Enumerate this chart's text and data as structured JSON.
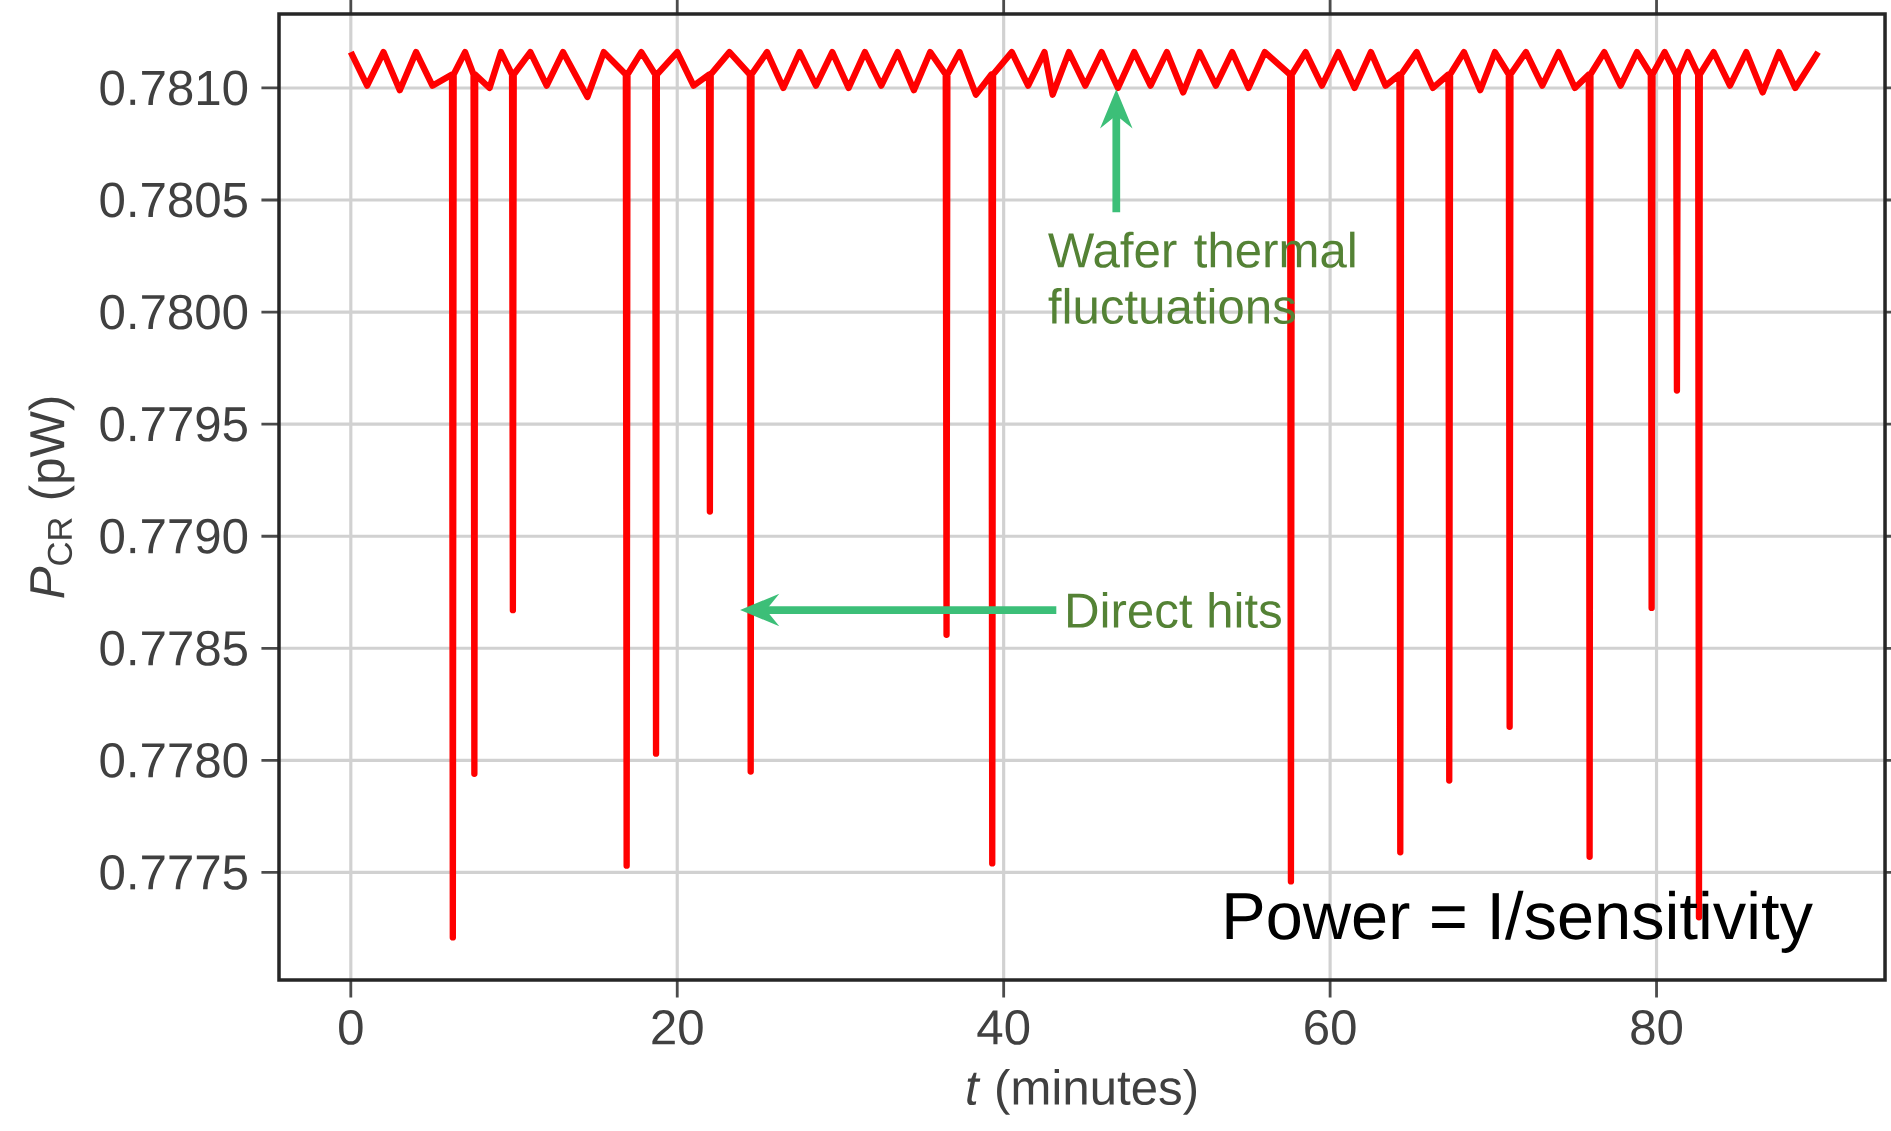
{
  "chart_data": {
    "type": "line",
    "xlabel": "*t* (minutes)",
    "ylabel": "*P*$_{CR}$ (pW)",
    "xlim": [
      -4.4,
      94.0
    ],
    "ylim": [
      0.77702,
      0.78133
    ],
    "xticks": [
      0,
      20,
      40,
      60,
      80
    ],
    "yticks": [
      {
        "value": 0.7775,
        "label": "0.7775"
      },
      {
        "value": 0.778,
        "label": "0.7780"
      },
      {
        "value": 0.7785,
        "label": "0.7785"
      },
      {
        "value": 0.779,
        "label": "0.7790"
      },
      {
        "value": 0.7795,
        "label": "0.7795"
      },
      {
        "value": 0.78,
        "label": "0.7800"
      },
      {
        "value": 0.7805,
        "label": "0.7805"
      },
      {
        "value": 0.781,
        "label": "0.7810"
      }
    ],
    "grid": true,
    "marker": "none",
    "line_style": "solid",
    "series": [
      {
        "color": "#ff0000",
        "x": [
          0,
          1,
          2,
          3,
          4,
          5,
          6.2,
          6.25,
          6.3,
          7.0,
          7.52,
          7.57,
          7.62,
          8.5,
          9.2,
          9.88,
          9.93,
          9.98,
          11,
          12,
          13,
          14.5,
          15.5,
          16.85,
          16.9,
          16.95,
          17.8,
          18.65,
          18.7,
          18.75,
          20,
          21,
          21.95,
          22.0,
          22.05,
          23.2,
          24.45,
          24.5,
          24.55,
          25.5,
          26.5,
          27.5,
          28.5,
          29.5,
          30.5,
          31.5,
          32.5,
          33.5,
          34.5,
          35.5,
          36.45,
          36.5,
          36.55,
          37.3,
          38.3,
          39.25,
          39.3,
          39.35,
          40.5,
          41.5,
          42.5,
          43.0,
          44,
          45,
          46,
          47,
          48,
          49,
          50,
          51,
          52,
          53,
          54,
          55,
          56,
          57.55,
          57.6,
          57.65,
          58.5,
          59.5,
          60.5,
          61.5,
          62.5,
          63.4,
          64.25,
          64.3,
          64.35,
          65.3,
          66.3,
          67.25,
          67.3,
          67.35,
          68.2,
          69.2,
          70.1,
          70.95,
          71.0,
          71.05,
          72,
          73,
          74,
          75,
          75.85,
          75.9,
          75.95,
          76.8,
          77.8,
          78.8,
          79.65,
          79.7,
          79.75,
          80.5,
          81.2,
          81.25,
          81.3,
          81.9,
          82.55,
          82.6,
          82.65,
          83.5,
          84.5,
          85.5,
          86.5,
          87.5,
          88.5,
          89.9
        ],
        "values": [
          0.78116,
          0.78101,
          0.78116,
          0.78099,
          0.78116,
          0.78101,
          0.78106,
          0.77721,
          0.78106,
          0.78116,
          0.78106,
          0.77794,
          0.78106,
          0.781,
          0.78116,
          0.78106,
          0.77867,
          0.78106,
          0.78116,
          0.78101,
          0.78116,
          0.78096,
          0.78116,
          0.78106,
          0.77753,
          0.78106,
          0.78116,
          0.78106,
          0.77803,
          0.78106,
          0.78116,
          0.78101,
          0.78106,
          0.77911,
          0.78106,
          0.78116,
          0.78106,
          0.77795,
          0.78106,
          0.78116,
          0.781,
          0.78116,
          0.78101,
          0.78116,
          0.781,
          0.78116,
          0.78101,
          0.78116,
          0.78099,
          0.78116,
          0.78106,
          0.77856,
          0.78106,
          0.78116,
          0.78097,
          0.78106,
          0.77754,
          0.78106,
          0.78116,
          0.78101,
          0.78116,
          0.78097,
          0.78116,
          0.78101,
          0.78116,
          0.781,
          0.78116,
          0.78101,
          0.78116,
          0.78098,
          0.78116,
          0.78101,
          0.78116,
          0.781,
          0.78116,
          0.78106,
          0.77746,
          0.78106,
          0.78116,
          0.78101,
          0.78116,
          0.781,
          0.78116,
          0.78101,
          0.78106,
          0.77759,
          0.78106,
          0.78116,
          0.781,
          0.78106,
          0.77791,
          0.78106,
          0.78116,
          0.78099,
          0.78116,
          0.78106,
          0.77815,
          0.78106,
          0.78116,
          0.78101,
          0.78116,
          0.781,
          0.78106,
          0.77757,
          0.78106,
          0.78116,
          0.78101,
          0.78116,
          0.78106,
          0.77868,
          0.78106,
          0.78116,
          0.78106,
          0.77965,
          0.78106,
          0.78116,
          0.78106,
          0.7773,
          0.78106,
          0.78116,
          0.78101,
          0.78116,
          0.78098,
          0.78116,
          0.781,
          0.78116
        ]
      }
    ],
    "annotations": [
      {
        "text": "Wafer thermal fluctuations",
        "x": 46.9,
        "y": 0.78101
      },
      "Direct hits",
      "Power = I/sensitivity"
    ]
  }
}
